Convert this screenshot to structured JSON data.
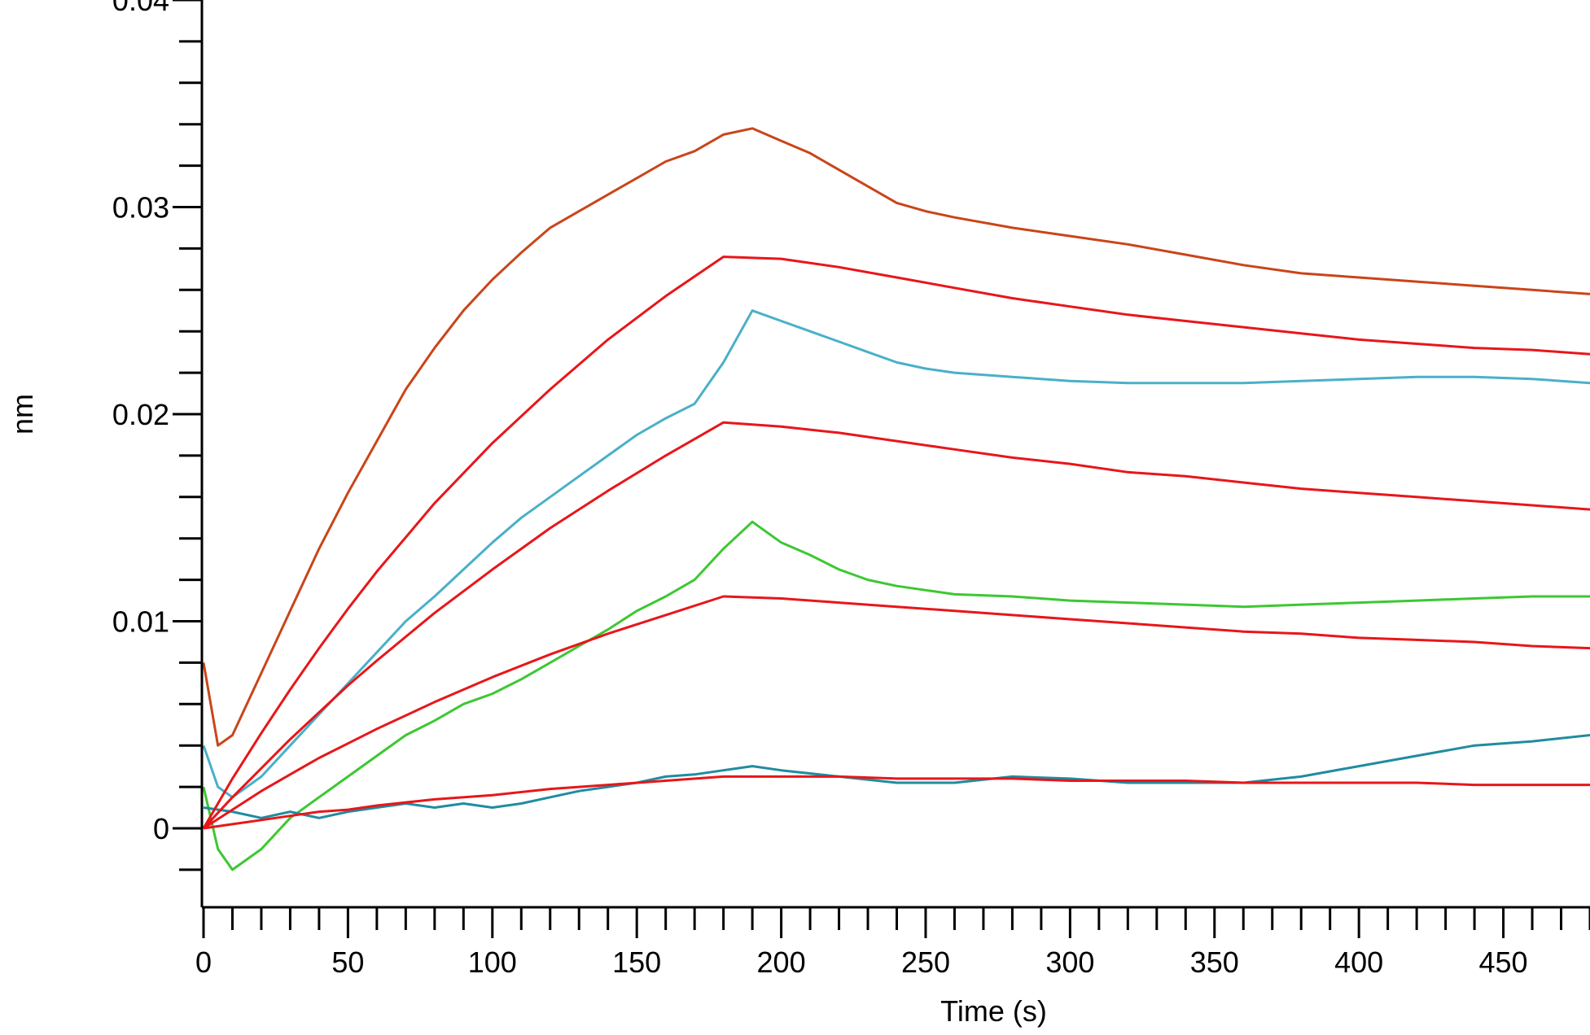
{
  "chart_data": {
    "type": "line",
    "title": "",
    "xlabel": "Time (s)",
    "ylabel": "nm",
    "xlim": [
      0,
      480
    ],
    "ylim": [
      -0.0037,
      0.04
    ],
    "x_ticks": [
      {
        "value": 0,
        "label": "0"
      },
      {
        "value": 50,
        "label": "50"
      },
      {
        "value": 100,
        "label": "100"
      },
      {
        "value": 150,
        "label": "150"
      },
      {
        "value": 200,
        "label": "200"
      },
      {
        "value": 250,
        "label": "250"
      },
      {
        "value": 300,
        "label": "300"
      },
      {
        "value": 350,
        "label": "350"
      },
      {
        "value": 400,
        "label": "400"
      },
      {
        "value": 450,
        "label": "450"
      }
    ],
    "y_ticks": [
      {
        "value": 0,
        "label": "0"
      },
      {
        "value": 0.01,
        "label": "0.01"
      },
      {
        "value": 0.02,
        "label": "0.02"
      },
      {
        "value": 0.03,
        "label": "0.03"
      },
      {
        "value": 0.04,
        "label": "0.04"
      }
    ],
    "grid": false,
    "legend": "none",
    "association_end": 180,
    "series": [
      {
        "kind": "measured",
        "color": "#C9451A",
        "x": [
          0,
          5,
          10,
          20,
          30,
          40,
          50,
          60,
          70,
          80,
          90,
          100,
          110,
          120,
          130,
          140,
          150,
          160,
          170,
          180,
          190,
          200,
          210,
          220,
          230,
          240,
          250,
          260,
          280,
          300,
          320,
          340,
          360,
          380,
          400,
          420,
          440,
          460,
          480
        ],
        "y": [
          0.008,
          0.004,
          0.0045,
          0.0075,
          0.0105,
          0.0135,
          0.0162,
          0.0187,
          0.0212,
          0.0232,
          0.025,
          0.0265,
          0.0278,
          0.029,
          0.0298,
          0.0306,
          0.0314,
          0.0322,
          0.0327,
          0.0335,
          0.0338,
          0.0332,
          0.0326,
          0.0318,
          0.031,
          0.0302,
          0.0298,
          0.0295,
          0.029,
          0.0286,
          0.0282,
          0.0277,
          0.0272,
          0.0268,
          0.0266,
          0.0264,
          0.0262,
          0.026,
          0.0258
        ]
      },
      {
        "kind": "measured",
        "color": "#4AB0C8",
        "x": [
          0,
          5,
          10,
          20,
          30,
          40,
          50,
          60,
          70,
          80,
          90,
          100,
          110,
          120,
          130,
          140,
          150,
          160,
          170,
          180,
          190,
          200,
          210,
          220,
          230,
          240,
          250,
          260,
          280,
          300,
          320,
          340,
          360,
          380,
          400,
          420,
          440,
          460,
          480
        ],
        "y": [
          0.004,
          0.002,
          0.0015,
          0.0025,
          0.004,
          0.0055,
          0.007,
          0.0085,
          0.01,
          0.0112,
          0.0125,
          0.0138,
          0.015,
          0.016,
          0.017,
          0.018,
          0.019,
          0.0198,
          0.0205,
          0.0225,
          0.025,
          0.0245,
          0.024,
          0.0235,
          0.023,
          0.0225,
          0.0222,
          0.022,
          0.0218,
          0.0216,
          0.0215,
          0.0215,
          0.0215,
          0.0216,
          0.0217,
          0.0218,
          0.0218,
          0.0217,
          0.0215
        ]
      },
      {
        "kind": "measured",
        "color": "#3CC832",
        "x": [
          0,
          5,
          10,
          20,
          30,
          40,
          50,
          60,
          70,
          80,
          90,
          100,
          110,
          120,
          130,
          140,
          150,
          160,
          170,
          180,
          190,
          200,
          210,
          220,
          230,
          240,
          250,
          260,
          280,
          300,
          320,
          340,
          360,
          380,
          400,
          420,
          440,
          460,
          480
        ],
        "y": [
          0.002,
          -0.001,
          -0.002,
          -0.001,
          0.0005,
          0.0015,
          0.0025,
          0.0035,
          0.0045,
          0.0052,
          0.006,
          0.0065,
          0.0072,
          0.008,
          0.0088,
          0.0096,
          0.0105,
          0.0112,
          0.012,
          0.0135,
          0.0148,
          0.0138,
          0.0132,
          0.0125,
          0.012,
          0.0117,
          0.0115,
          0.0113,
          0.0112,
          0.011,
          0.0109,
          0.0108,
          0.0107,
          0.0108,
          0.0109,
          0.011,
          0.0111,
          0.0112,
          0.0112
        ]
      },
      {
        "kind": "measured",
        "color": "#1F8CA0",
        "x": [
          0,
          10,
          20,
          30,
          40,
          50,
          60,
          70,
          80,
          90,
          100,
          110,
          120,
          130,
          140,
          150,
          160,
          170,
          180,
          190,
          200,
          220,
          240,
          260,
          280,
          300,
          320,
          340,
          360,
          380,
          400,
          420,
          440,
          460,
          480
        ],
        "y": [
          0.001,
          0.0008,
          0.0005,
          0.0008,
          0.0005,
          0.0008,
          0.001,
          0.0012,
          0.001,
          0.0012,
          0.001,
          0.0012,
          0.0015,
          0.0018,
          0.002,
          0.0022,
          0.0025,
          0.0026,
          0.0028,
          0.003,
          0.0028,
          0.0025,
          0.0022,
          0.0022,
          0.0025,
          0.0024,
          0.0022,
          0.0022,
          0.0022,
          0.0025,
          0.003,
          0.0035,
          0.004,
          0.0042,
          0.0045
        ]
      },
      {
        "kind": "fit",
        "color": "#E8161A",
        "x": [
          0,
          10,
          20,
          30,
          40,
          50,
          60,
          80,
          100,
          120,
          140,
          160,
          180,
          200,
          220,
          240,
          260,
          280,
          300,
          320,
          340,
          360,
          380,
          400,
          420,
          440,
          460,
          480
        ],
        "y": [
          0,
          0.0024,
          0.0046,
          0.0067,
          0.0087,
          0.0106,
          0.0124,
          0.0157,
          0.0186,
          0.0212,
          0.0236,
          0.0257,
          0.0276,
          0.0275,
          0.0271,
          0.0266,
          0.0261,
          0.0256,
          0.0252,
          0.0248,
          0.0245,
          0.0242,
          0.0239,
          0.0236,
          0.0234,
          0.0232,
          0.0231,
          0.0229
        ]
      },
      {
        "kind": "fit",
        "color": "#E8161A",
        "x": [
          0,
          10,
          20,
          30,
          40,
          50,
          60,
          80,
          100,
          120,
          140,
          160,
          180,
          200,
          220,
          240,
          260,
          280,
          300,
          320,
          340,
          360,
          380,
          400,
          420,
          440,
          460,
          480
        ],
        "y": [
          0,
          0.0015,
          0.0029,
          0.0043,
          0.0056,
          0.0069,
          0.0081,
          0.0104,
          0.0125,
          0.0145,
          0.0163,
          0.018,
          0.0196,
          0.0194,
          0.0191,
          0.0187,
          0.0183,
          0.0179,
          0.0176,
          0.0172,
          0.017,
          0.0167,
          0.0164,
          0.0162,
          0.016,
          0.0158,
          0.0156,
          0.0154
        ]
      },
      {
        "kind": "fit",
        "color": "#E8161A",
        "x": [
          0,
          10,
          20,
          30,
          40,
          50,
          60,
          80,
          100,
          120,
          140,
          160,
          180,
          200,
          220,
          240,
          260,
          280,
          300,
          320,
          340,
          360,
          380,
          400,
          420,
          440,
          460,
          480
        ],
        "y": [
          0,
          0.0009,
          0.0018,
          0.0026,
          0.0034,
          0.0041,
          0.0048,
          0.0061,
          0.0073,
          0.0084,
          0.0094,
          0.0103,
          0.0112,
          0.0111,
          0.0109,
          0.0107,
          0.0105,
          0.0103,
          0.0101,
          0.0099,
          0.0097,
          0.0095,
          0.0094,
          0.0092,
          0.0091,
          0.009,
          0.0088,
          0.0087
        ]
      },
      {
        "kind": "fit",
        "color": "#E8161A",
        "x": [
          0,
          10,
          20,
          30,
          40,
          50,
          60,
          80,
          100,
          120,
          140,
          160,
          180,
          200,
          220,
          240,
          260,
          280,
          300,
          320,
          340,
          360,
          380,
          400,
          420,
          440,
          460,
          480
        ],
        "y": [
          0,
          0.0002,
          0.0004,
          0.0006,
          0.0008,
          0.0009,
          0.0011,
          0.0014,
          0.0016,
          0.0019,
          0.0021,
          0.0023,
          0.0025,
          0.0025,
          0.0025,
          0.0024,
          0.0024,
          0.0024,
          0.0023,
          0.0023,
          0.0023,
          0.0022,
          0.0022,
          0.0022,
          0.0022,
          0.0021,
          0.0021,
          0.0021
        ]
      }
    ]
  }
}
